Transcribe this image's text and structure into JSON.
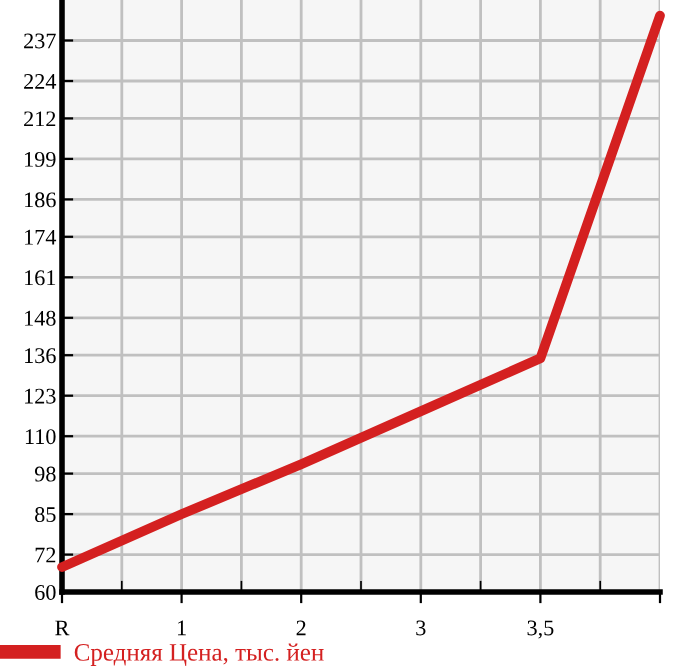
{
  "chart_data": {
    "type": "line",
    "categories": [
      "R",
      "1",
      "2",
      "3",
      "3,5",
      null
    ],
    "series": [
      {
        "name": "Средняя Цена, тыс. йен",
        "color": "#d42020",
        "values": [
          68,
          85,
          101,
          118,
          135,
          245
        ]
      }
    ],
    "ylim": [
      60,
      250
    ],
    "yticks": [
      60,
      72,
      85,
      98,
      110,
      123,
      136,
      148,
      161,
      174,
      186,
      199,
      212,
      224,
      237
    ],
    "grid": true,
    "legend": "bottom left",
    "marker": "none",
    "line_style": "solid"
  }
}
